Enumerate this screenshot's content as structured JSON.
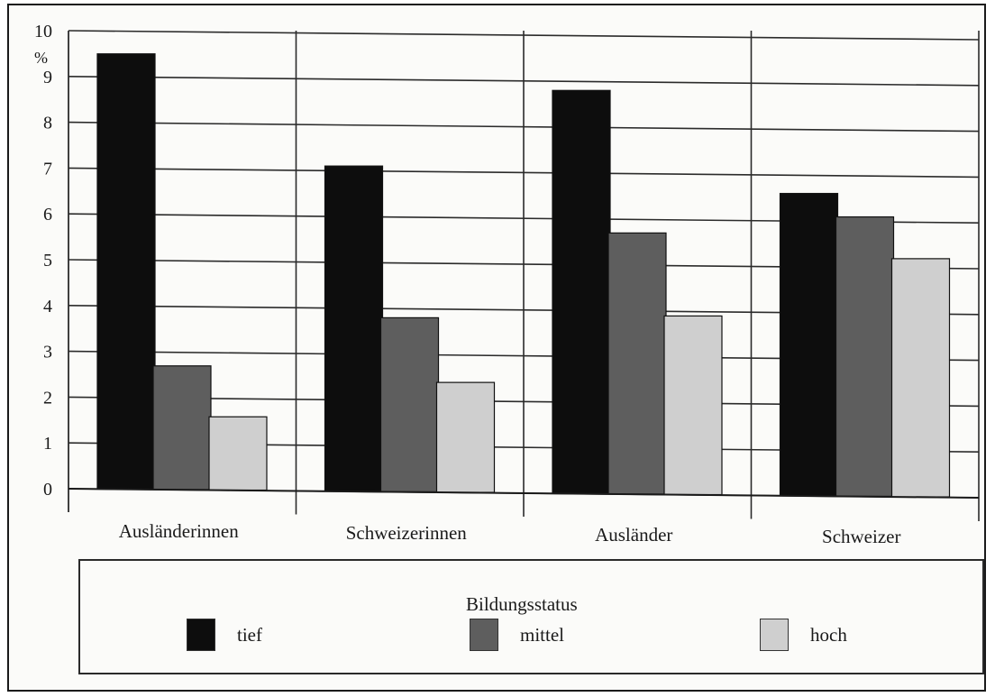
{
  "chart_data": {
    "type": "bar",
    "ylabel": "%",
    "ylim": [
      0,
      10
    ],
    "yticks": [
      0,
      1,
      2,
      3,
      4,
      5,
      6,
      7,
      8,
      9,
      10
    ],
    "grid": true,
    "categories": [
      "Ausländerinnen",
      "Schweizerinnen",
      "Ausländer",
      "Schweizer"
    ],
    "series": [
      {
        "name": "tief",
        "color": "#0d0d0d",
        "values": [
          9.5,
          7.1,
          8.8,
          6.6
        ]
      },
      {
        "name": "mittel",
        "color": "#5e5e5e",
        "values": [
          2.7,
          3.8,
          5.7,
          6.1
        ]
      },
      {
        "name": "hoch",
        "color": "#cfcfcf",
        "values": [
          1.6,
          2.4,
          3.9,
          5.2
        ]
      }
    ],
    "legend": {
      "title": "Bildungsstatus",
      "position": "bottom"
    }
  }
}
